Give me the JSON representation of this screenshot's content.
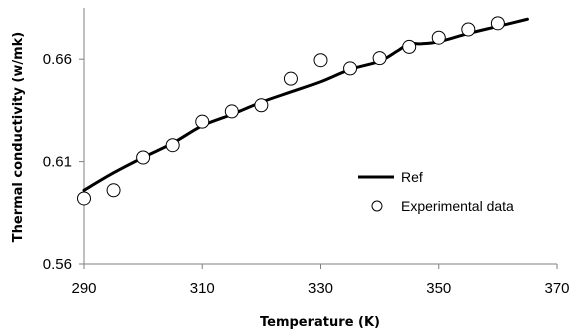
{
  "chart_data": {
    "type": "line",
    "xlabel": "Temperature  (K)",
    "ylabel": "Thermal conductivity (w/mk)",
    "xlim": [
      290,
      370
    ],
    "ylim": [
      0.56,
      0.685
    ],
    "x_ticks": [
      290,
      310,
      330,
      350,
      370
    ],
    "x_tick_labels": [
      "290",
      "310",
      "330",
      "350",
      "370"
    ],
    "y_ticks": [
      0.56,
      0.61,
      0.66
    ],
    "y_tick_labels": [
      "0.56",
      "0.61",
      "0.66"
    ],
    "grid": false,
    "legend_position": "right",
    "series": [
      {
        "name": "Ref",
        "style": "line",
        "color": "#000000",
        "x": [
          290,
          295,
          300,
          305,
          310,
          315,
          320,
          325,
          330,
          335,
          340,
          343,
          345,
          347,
          350,
          355,
          360,
          365
        ],
        "y": [
          0.596,
          0.6045,
          0.612,
          0.619,
          0.6275,
          0.633,
          0.639,
          0.644,
          0.649,
          0.655,
          0.659,
          0.664,
          0.6675,
          0.6675,
          0.6685,
          0.6725,
          0.676,
          0.6795
        ]
      },
      {
        "name": "Experimental data",
        "style": "markers",
        "marker": "open-circle",
        "color": "#000000",
        "x": [
          290,
          295,
          300,
          305,
          310,
          315,
          320,
          325,
          330,
          335,
          340,
          345,
          350,
          355,
          360
        ],
        "y": [
          0.592,
          0.596,
          0.612,
          0.618,
          0.6295,
          0.6345,
          0.6375,
          0.6505,
          0.6595,
          0.6555,
          0.6605,
          0.666,
          0.6705,
          0.6745,
          0.6775
        ]
      }
    ]
  }
}
